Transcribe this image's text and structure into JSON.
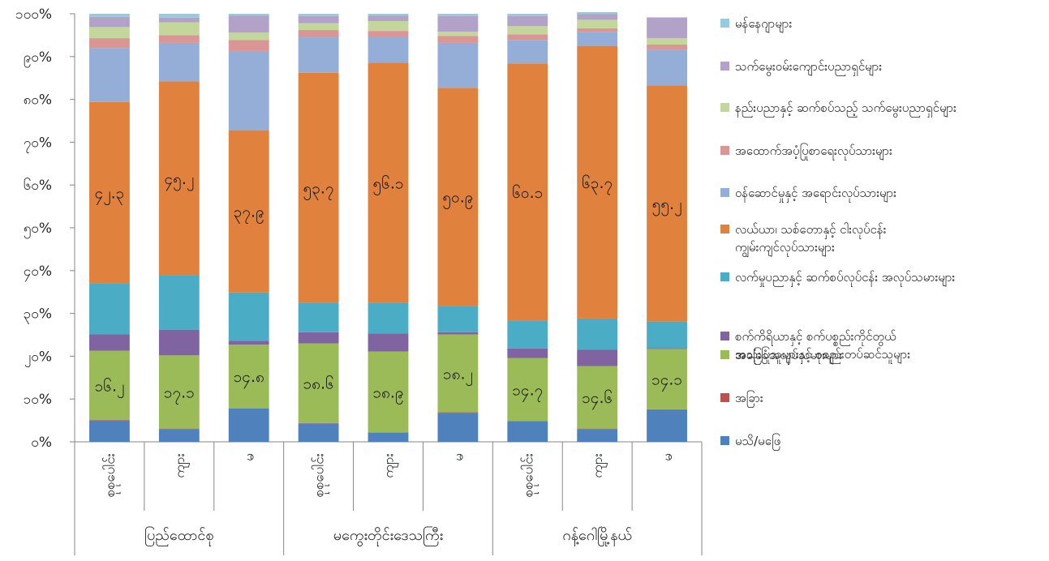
{
  "chart_data": {
    "type": "bar",
    "stacked": true,
    "percent": true,
    "ylim": [
      0,
      100
    ],
    "yticks": [
      "၀%",
      "၁၀%",
      "၂၀%",
      "၃၀%",
      "၄၀%",
      "၅၀%",
      "၆၀%",
      "၇၀%",
      "၈၀%",
      "၉၀%",
      "၁၀၀%"
    ],
    "groups": [
      {
        "label": "ပြည်ထောင်စု",
        "categories": [
          "စုစုပေါင်း",
          "ကျား",
          "မ"
        ]
      },
      {
        "label": "မကွေးတိုင်းဒေသကြီး",
        "categories": [
          "စုစုပေါင်း",
          "ကျား",
          "မ"
        ]
      },
      {
        "label": "ဂန့်ဂေါမြို့နယ်",
        "categories": [
          "စုစုပေါင်း",
          "ကျား",
          "မ"
        ]
      }
    ],
    "series": [
      {
        "name": "မသိ/မဖြေ",
        "color": "#4f81bd",
        "values": [
          5.0,
          3.0,
          7.8,
          4.3,
          2.1,
          6.8,
          4.8,
          3.0,
          7.5
        ]
      },
      {
        "name": "အခြား",
        "color": "#c0504d",
        "values": [
          0.1,
          0.1,
          0.1,
          0.1,
          0.1,
          0.1,
          0.1,
          0.1,
          0.1
        ]
      },
      {
        "name": "အခြေခံအလုပ်သမားများ",
        "color": "#9bbb59",
        "values": [
          16.2,
          17.1,
          14.8,
          18.6,
          18.9,
          18.2,
          14.7,
          14.6,
          14.1
        ]
      },
      {
        "name": "စက်ကိရိယာနှင့် စက်ပစ္စည်းကိုင်တွယ်အသုံးပြုသူများနှင့် စုစည်းတပ်ဆင်သူများ",
        "color": "#8064a2",
        "values": [
          3.8,
          6.0,
          0.9,
          2.6,
          4.2,
          0.5,
          2.2,
          3.8,
          0.2
        ]
      },
      {
        "name": "လက်မှုပညာနှင့် ဆက်စပ်လုပ်ငန်း အလုပ်သမားများ",
        "color": "#4bacc6",
        "values": [
          12.0,
          12.8,
          11.3,
          6.9,
          7.2,
          6.2,
          6.5,
          7.3,
          6.2
        ]
      },
      {
        "name": "လယ်ယာ၊ သစ်တောနှင့် ငါးလုပ်ငန်း ကျွမ်းကျင်လုပ်သားများ",
        "color": "#e0823d",
        "values": [
          42.3,
          45.2,
          37.9,
          53.7,
          56.1,
          50.9,
          60.1,
          63.7,
          55.2
        ]
      },
      {
        "name": "ဝန်ဆောင်မှုနှင့် အရောင်းလုပ်သားများ",
        "color": "#95aed8",
        "values": [
          12.5,
          9.0,
          18.5,
          8.3,
          6.0,
          10.5,
          5.5,
          3.3,
          8.2
        ]
      },
      {
        "name": "အထောက်အပံ့ပြုစာရေးလုပ်သားများ",
        "color": "#d99694",
        "values": [
          2.4,
          1.8,
          2.6,
          1.7,
          1.4,
          1.6,
          1.3,
          0.8,
          1.3
        ]
      },
      {
        "name": "နည်းပညာနှင့် ဆက်စပ်သည့် သက်မွေးပညာရှင်များ",
        "color": "#c3d69b",
        "values": [
          2.6,
          3.0,
          1.7,
          1.6,
          2.3,
          1.0,
          1.9,
          2.0,
          1.5
        ]
      },
      {
        "name": "သက်မွေးဝမ်းကျောင်းပညာရှင်များ",
        "color": "#b3a2c7",
        "values": [
          2.4,
          1.1,
          4.0,
          1.7,
          1.3,
          3.7,
          2.4,
          1.3,
          4.8
        ]
      },
      {
        "name": "မန်နေဂျာများ",
        "color": "#93cddd",
        "values": [
          0.7,
          0.9,
          0.4,
          0.5,
          0.4,
          0.5,
          0.5,
          0.5,
          0.1
        ]
      }
    ],
    "data_labels": [
      {
        "series": "လယ်ယာ၊ သစ်တောနှင့် ငါးလုပ်ငန်း ကျွမ်းကျင်လုပ်သားများ",
        "labels": [
          "၄၂.၃",
          "၄၅.၂",
          "၃၇.၉",
          "၅၃.၇",
          "၅၆.၁",
          "၅၀.၉",
          "၆၀.၁",
          "၆၃.၇",
          "၅၅.၂"
        ]
      },
      {
        "series": "အခြေခံအလုပ်သမားများ",
        "labels": [
          "၁၆.၂",
          "၁၇.၁",
          "၁၄.၈",
          "၁၈.၆",
          "၁၈.၉",
          "၁၈.၂",
          "၁၄.၇",
          "၁၄.၆",
          "၁၄.၁"
        ]
      }
    ],
    "legend": {
      "position": "right",
      "order": [
        "မန်နေဂျာများ",
        "သက်မွေးဝမ်းကျောင်းပညာရှင်များ",
        "နည်းပညာနှင့် ဆက်စပ်သည့် သက်မွေးပညာရှင်များ",
        "အထောက်အပံ့ပြုစာရေးလုပ်သားများ",
        "ဝန်ဆောင်မှုနှင့် အရောင်းလုပ်သားများ",
        "လယ်ယာ၊ သစ်တောနှင့် ငါးလုပ်ငန်း ကျွမ်းကျင်လုပ်သားများ",
        "လက်မှုပညာနှင့် ဆက်စပ်လုပ်ငန်း အလုပ်သမားများ",
        "စက်ကိရိယာနှင့် စက်ပစ္စည်းကိုင်တွယ်အသုံးပြုသူများနှင့် စုစည်းတပ်ဆင်သူများ",
        "အခြေခံအလုပ်သမားများ",
        "အခြား",
        "မသိ/မဖြေ"
      ],
      "display_lines": [
        [
          "မန်နေဂျာများ"
        ],
        [
          "သက်မွေးဝမ်းကျောင်းပညာရှင်များ"
        ],
        [
          "နည်းပညာနှင့် ဆက်စပ်သည့် သက်မွေးပညာရှင်များ"
        ],
        [
          "အထောက်အပံ့ပြုစာရေးလုပ်သားများ"
        ],
        [
          "ဝန်ဆောင်မှုနှင့် အရောင်းလုပ်သားများ"
        ],
        [
          "လယ်ယာ၊ သစ်တောနှင့် ငါးလုပ်ငန်း",
          "ကျွမ်းကျင်လုပ်သားများ"
        ],
        [
          "လက်မှုပညာနှင့် ဆက်စပ်လုပ်ငန်း အလုပ်သမားများ"
        ],
        [
          "စက်ကိရိယာနှင့် စက်ပစ္စည်းကိုင်တွယ်",
          "အသုံးပြုသူများနှင့် စုစည်းတပ်ဆင်သူများ"
        ],
        [
          "အခြေခံအလုပ်သမားများ"
        ],
        [
          "အခြား"
        ],
        [
          "မသိ/မဖြေ"
        ]
      ]
    },
    "grid": false
  }
}
